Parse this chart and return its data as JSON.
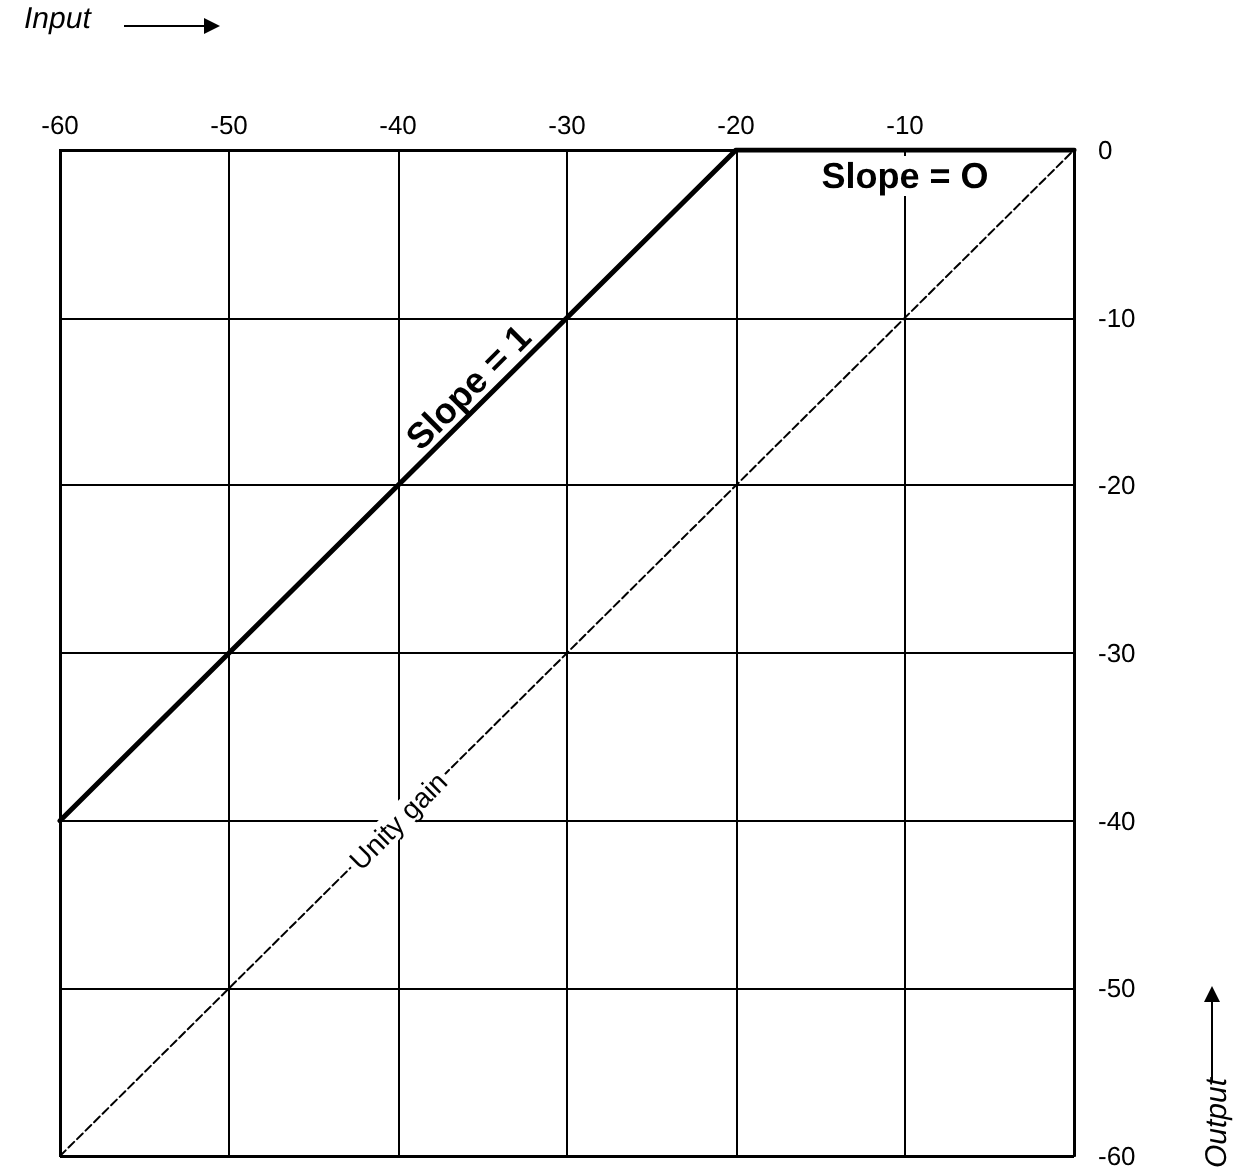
{
  "chart_data": {
    "type": "line",
    "xlabel": "Input",
    "ylabel": "Output",
    "xlim": [
      -60,
      0
    ],
    "xticks": [
      -60,
      -50,
      -40,
      -30,
      -20,
      -10,
      {
        "value": 0,
        "label": null
      }
    ],
    "ylim": [
      -60,
      0
    ],
    "yticks": [
      0,
      -10,
      -20,
      -30,
      -40,
      -50,
      -60
    ],
    "series": [
      {
        "x": [
          -60,
          -20,
          0
        ],
        "values": [
          -40,
          0,
          0
        ],
        "color": "#000000",
        "line_style": "solid"
      },
      {
        "x": [
          -60,
          0
        ],
        "values": [
          -60,
          0
        ],
        "color": "#000000",
        "line_style": "dashed"
      }
    ],
    "annotations": [
      {
        "text": "Slope = 1",
        "x": -35,
        "y": -15
      },
      {
        "text": "Slope = O",
        "x": -10,
        "y": 0
      },
      {
        "text": "Unity gain",
        "x": -40,
        "y": -40
      }
    ],
    "grid": true,
    "marker": "none"
  }
}
